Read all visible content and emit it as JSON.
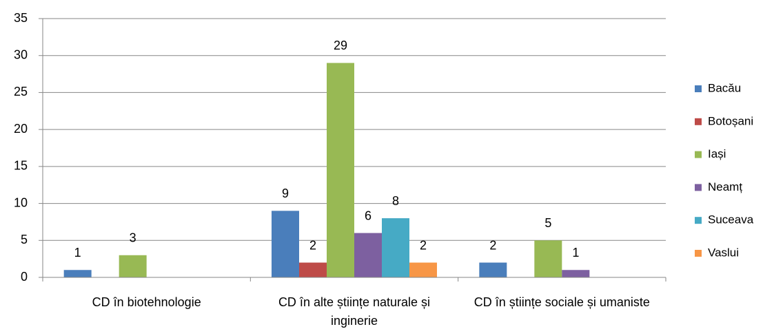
{
  "chart_data": {
    "type": "bar",
    "categories": [
      "CD în biotehnologie",
      "CD în alte științe naturale și inginerie",
      "CD în științe sociale și umaniste"
    ],
    "series": [
      {
        "name": "Bacău",
        "color": "#4a7ebb",
        "values": [
          1,
          9,
          2
        ]
      },
      {
        "name": "Botoșani",
        "color": "#be4b48",
        "values": [
          null,
          2,
          null
        ]
      },
      {
        "name": "Iași",
        "color": "#98b954",
        "values": [
          3,
          29,
          5
        ]
      },
      {
        "name": "Neamț",
        "color": "#7d60a0",
        "values": [
          null,
          6,
          1
        ]
      },
      {
        "name": "Suceava",
        "color": "#46aac5",
        "values": [
          null,
          8,
          null
        ]
      },
      {
        "name": "Vaslui",
        "color": "#f79646",
        "values": [
          null,
          2,
          null
        ]
      }
    ],
    "ylim": [
      0,
      35
    ],
    "yticks": [
      0,
      5,
      10,
      15,
      20,
      25,
      30,
      35
    ],
    "grid": true,
    "legend": "right"
  }
}
